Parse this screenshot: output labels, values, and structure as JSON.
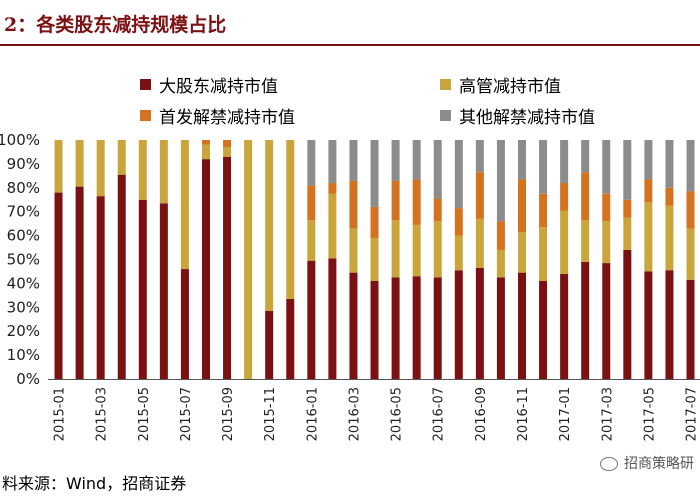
{
  "header": {
    "title": "2：各类股东减持规模占比"
  },
  "footer": {
    "source": "料来源：Wind，招商证券",
    "watermark": "招商策略研"
  },
  "chart_data": {
    "type": "bar",
    "stacked": true,
    "categories": [
      "2015-01",
      "2015-02",
      "2015-03",
      "2015-04",
      "2015-05",
      "2015-06",
      "2015-07",
      "2015-08",
      "2015-09",
      "2015-10",
      "2015-11",
      "2015-12",
      "2016-01",
      "2016-02",
      "2016-03",
      "2016-04",
      "2016-05",
      "2016-06",
      "2016-07",
      "2016-08",
      "2016-09",
      "2016-10",
      "2016-11",
      "2016-12",
      "2017-01",
      "2017-02",
      "2017-03",
      "2017-04",
      "2017-05",
      "2017-06",
      "2017-07"
    ],
    "tick_labels": [
      "2015-01",
      "",
      "2015-03",
      "",
      "2015-05",
      "",
      "2015-07",
      "",
      "2015-09",
      "",
      "2015-11",
      "",
      "2016-01",
      "",
      "2016-03",
      "",
      "2016-05",
      "",
      "2016-07",
      "",
      "2016-09",
      "",
      "2016-11",
      "",
      "2017-01",
      "",
      "2017-03",
      "",
      "2017-05",
      "",
      "2017-07"
    ],
    "y_ticks": [
      "0%",
      "10%",
      "20%",
      "30%",
      "40%",
      "50%",
      "60%",
      "70%",
      "80%",
      "90%",
      "100%"
    ],
    "ylim": [
      0,
      100
    ],
    "legend_position": "top",
    "series": [
      {
        "name": "大股东减持市值",
        "color": "#7b1113",
        "values": [
          78,
          80.5,
          76.5,
          85.5,
          75,
          73.5,
          46,
          92,
          93,
          0,
          28.5,
          33.5,
          49.5,
          50.5,
          44.5,
          41,
          42.5,
          43,
          42.5,
          45.5,
          46.5,
          42.5,
          44.5,
          41,
          44,
          49,
          48.5,
          54,
          45,
          45.5,
          41.5
        ]
      },
      {
        "name": "高管减持市值",
        "color": "#c9a53b",
        "values": [
          22,
          19.5,
          23.5,
          14.5,
          25,
          26.5,
          54,
          6,
          4,
          100,
          71.5,
          66.5,
          17,
          27,
          18.5,
          18,
          24,
          21.5,
          23.5,
          14.5,
          20.5,
          11.5,
          17,
          22.5,
          26.5,
          17.5,
          17.5,
          13.5,
          29,
          27,
          21.5
        ]
      },
      {
        "name": "首发解禁减持市值",
        "color": "#d4731f",
        "values": [
          0,
          0,
          0,
          0,
          0,
          0,
          0,
          2,
          3,
          0,
          0,
          0,
          14.5,
          4.5,
          20,
          13,
          16.5,
          19,
          9.5,
          11.5,
          19.5,
          12,
          22,
          14,
          11.5,
          20,
          11.5,
          7.5,
          9.5,
          7.5,
          15.5
        ]
      },
      {
        "name": "其他解禁减持市值",
        "color": "#8c8c8c",
        "values": [
          0,
          0,
          0,
          0,
          0,
          0,
          0,
          0,
          0,
          0,
          0,
          0,
          19,
          18,
          17,
          28,
          17,
          16.5,
          24.5,
          28.5,
          13.5,
          34,
          16.5,
          22.5,
          18,
          13.5,
          22.5,
          25,
          16.5,
          20,
          21.5
        ]
      }
    ]
  }
}
